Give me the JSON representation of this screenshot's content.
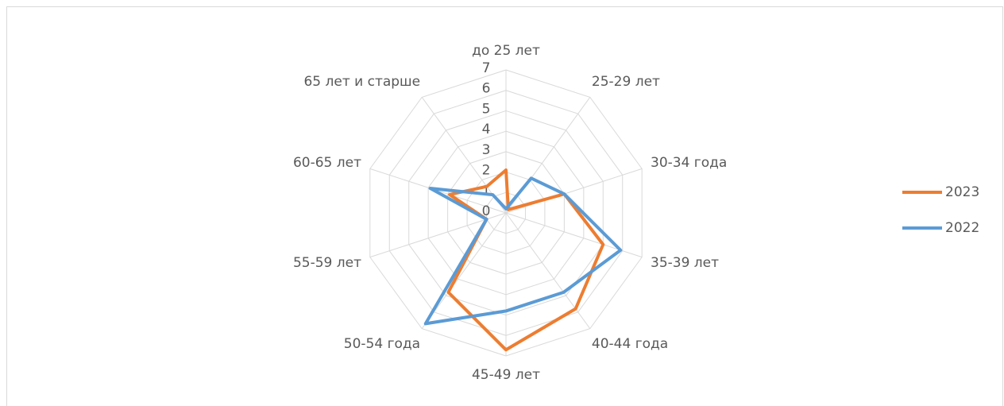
{
  "chart_data": {
    "type": "radar",
    "categories": [
      "до 25 лет",
      "25-29 лет",
      "30-34 года",
      "35-39 лет",
      "40-44 года",
      "45-49 лет",
      "50-54 года",
      "55-59 лет",
      "60-65 лет",
      "65 лет и старше"
    ],
    "series": [
      {
        "name": "2023",
        "color": "#ed7d31",
        "values": [
          2.1,
          0.2,
          3.0,
          5.0,
          5.8,
          6.7,
          4.8,
          1.0,
          2.9,
          1.6
        ]
      },
      {
        "name": "2022",
        "color": "#5b9bd5",
        "values": [
          0.2,
          2.1,
          3.0,
          5.9,
          4.8,
          4.8,
          6.7,
          1.0,
          3.9,
          1.1
        ]
      }
    ],
    "ylim": [
      0,
      7
    ],
    "yticks": [
      0,
      1,
      2,
      3,
      4,
      5,
      6,
      7
    ],
    "grid": true,
    "legend": "right"
  }
}
